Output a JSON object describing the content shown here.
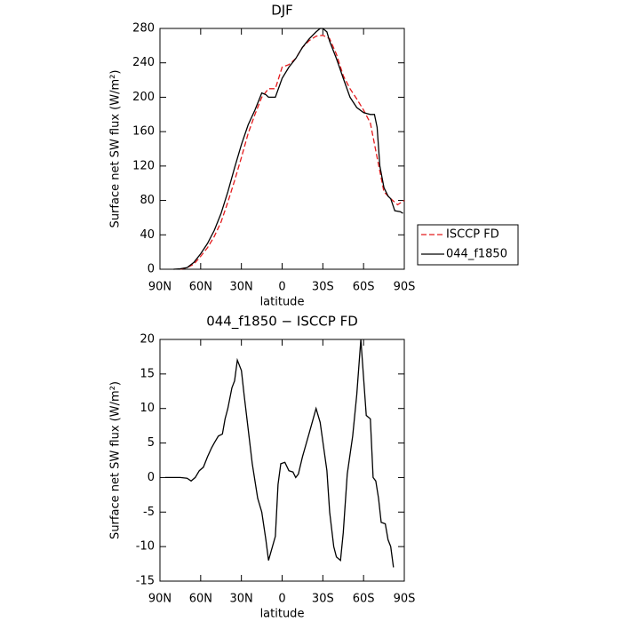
{
  "chart_data": [
    {
      "type": "line",
      "title": "DJF",
      "xlabel": "latitude",
      "ylabel": "Surface net SW flux (W/m²)",
      "xlim": [
        90,
        -90
      ],
      "xticks": [
        {
          "value": 90,
          "label": "90N"
        },
        {
          "value": 60,
          "label": "60N"
        },
        {
          "value": 30,
          "label": "30N"
        },
        0,
        {
          "value": -30,
          "label": "30S"
        },
        {
          "value": -60,
          "label": "60S"
        },
        {
          "value": -90,
          "label": "90S"
        }
      ],
      "ylim": [
        0,
        280
      ],
      "yticks": [
        0,
        40,
        80,
        120,
        160,
        200,
        240,
        280
      ],
      "legend": "outside-right",
      "series": [
        {
          "name": "ISCCP FD",
          "color": "#e41a1c",
          "style": "dashed",
          "x": [
            75,
            70,
            65,
            60,
            55,
            50,
            45,
            40,
            35,
            30,
            25,
            20,
            15,
            10,
            5,
            0,
            -5,
            -10,
            -15,
            -20,
            -25,
            -30,
            -35,
            -40,
            -45,
            -50,
            -55,
            -60,
            -65,
            -70,
            -75,
            -80,
            -85,
            -90
          ],
          "values": [
            0,
            2,
            6,
            15,
            25,
            38,
            55,
            78,
            103,
            130,
            158,
            180,
            200,
            210,
            210,
            235,
            238,
            245,
            258,
            266,
            271,
            272,
            268,
            250,
            225,
            210,
            198,
            185,
            170,
            130,
            90,
            82,
            75,
            80
          ]
        },
        {
          "name": "044_f1850",
          "color": "#000000",
          "style": "solid",
          "x": [
            80,
            75,
            70,
            65,
            60,
            55,
            50,
            45,
            40,
            35,
            30,
            25,
            20,
            15,
            12,
            10,
            5,
            0,
            -5,
            -10,
            -15,
            -20,
            -25,
            -28,
            -30,
            -33,
            -35,
            -40,
            -45,
            -50,
            -55,
            -60,
            -65,
            -68,
            -70,
            -72,
            -75,
            -78,
            -80,
            -83,
            -87,
            -89
          ],
          "values": [
            0,
            0.5,
            2,
            8,
            18,
            30,
            45,
            65,
            90,
            118,
            145,
            168,
            185,
            205,
            203,
            200,
            200,
            222,
            235,
            245,
            258,
            268,
            276,
            280,
            280,
            276,
            265,
            245,
            222,
            200,
            188,
            182,
            180,
            180,
            165,
            120,
            95,
            85,
            82,
            68,
            67,
            65
          ]
        }
      ]
    },
    {
      "type": "line",
      "title": "044_f1850 − ISCCP FD",
      "xlabel": "latitude",
      "ylabel": "Surface net SW flux (W/m²)",
      "xlim": [
        90,
        -90
      ],
      "xticks": [
        {
          "value": 90,
          "label": "90N"
        },
        {
          "value": 60,
          "label": "60N"
        },
        {
          "value": 30,
          "label": "30N"
        },
        0,
        {
          "value": -30,
          "label": "30S"
        },
        {
          "value": -60,
          "label": "60S"
        },
        {
          "value": -90,
          "label": "90S"
        }
      ],
      "ylim": [
        -15,
        20
      ],
      "yticks": [
        -15,
        -10,
        -5,
        0,
        5,
        10,
        15,
        20
      ],
      "series": [
        {
          "color": "#000000",
          "style": "solid",
          "x": [
            86,
            75,
            70,
            67,
            64,
            61,
            58,
            55,
            52,
            50,
            47,
            44,
            42,
            40,
            37,
            35,
            33,
            30,
            28,
            25,
            22,
            18,
            15,
            12,
            10,
            5,
            3,
            1,
            -2,
            -5,
            -8,
            -10,
            -12,
            -15,
            -20,
            -25,
            -28,
            -33,
            -35,
            -38,
            -40,
            -43,
            -45,
            -48,
            -52,
            -55,
            -58,
            -62,
            -65,
            -67,
            -69,
            -71,
            -73,
            -76,
            -78,
            -80,
            -82
          ],
          "values": [
            0,
            0,
            -0.1,
            -0.5,
            0,
            1,
            1.5,
            3,
            4.3,
            5,
            6,
            6.3,
            8.5,
            10,
            13,
            14,
            17,
            15.5,
            12,
            7,
            2,
            -3,
            -5,
            -9,
            -12,
            -8.5,
            -1,
            2,
            2.2,
            1,
            0.8,
            0,
            0.5,
            3,
            6.5,
            10,
            8,
            1,
            -5,
            -10,
            -11.5,
            -12,
            -8,
            0.5,
            6,
            12,
            20,
            9,
            8.5,
            0,
            -0.5,
            -3,
            -6.5,
            -6.7,
            -9,
            -10,
            -13
          ]
        }
      ]
    }
  ]
}
